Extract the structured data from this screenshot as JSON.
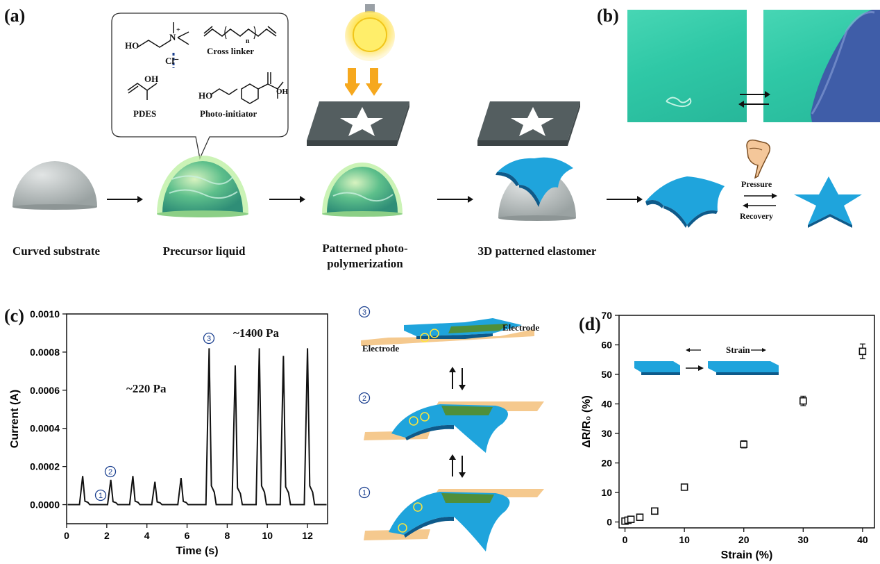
{
  "panel_a": {
    "label": "(a)",
    "captions": [
      "Curved substrate",
      "Precursor liquid",
      "Patterned photo-",
      "polymerization",
      "3D patterned elastomer"
    ],
    "chemicals": {
      "cl": "Cl⁻",
      "n": "N",
      "plus": "+",
      "ho1": "HO",
      "oh1": "OH",
      "ho2": "HO",
      "oh2": "OH",
      "pdes": "PDES",
      "cross_linker": "Cross linker",
      "n_sub": "n",
      "photo_initiator": "Photo-initiator"
    }
  },
  "panel_b": {
    "label": "(b)",
    "pressure": "Pressure",
    "recovery": "Recovery"
  },
  "panel_c": {
    "label": "(c)",
    "annot_low": "~220 Pa",
    "annot_high": "~1400 Pa",
    "markers": [
      "1",
      "2",
      "3"
    ],
    "schematic_markers": [
      "3",
      "2",
      "1"
    ],
    "electrode_left": "Electrode",
    "electrode_right": "Electrode"
  },
  "panel_d": {
    "label": "(d)",
    "strain_label": "Strain"
  },
  "chart_data": [
    {
      "type": "line",
      "xlabel": "Time (s)",
      "ylabel": "Current (A)",
      "xlim": [
        0,
        13
      ],
      "ylim": [
        -0.0001,
        0.001
      ],
      "x_ticks": [
        "0",
        "2",
        "4",
        "6",
        "8",
        "10",
        "12"
      ],
      "y_ticks": [
        "0.0000",
        "0.0002",
        "0.0004",
        "0.0006",
        "0.0008",
        "0.0010"
      ],
      "baseline": 0.0,
      "peaks": [
        {
          "t": 0.8,
          "value": 0.00015
        },
        {
          "t": 2.2,
          "value": 0.00013
        },
        {
          "t": 3.3,
          "value": 0.00015
        },
        {
          "t": 4.4,
          "value": 0.00012
        },
        {
          "t": 5.7,
          "value": 0.00014
        },
        {
          "t": 7.1,
          "value": 0.00082
        },
        {
          "t": 8.4,
          "value": 0.00073
        },
        {
          "t": 9.6,
          "value": 0.00082
        },
        {
          "t": 10.8,
          "value": 0.00078
        },
        {
          "t": 12.0,
          "value": 0.00082
        }
      ]
    },
    {
      "type": "scatter",
      "xlabel": "Strain (%)",
      "ylabel": "ΔR/R₀ (%)",
      "xlim": [
        -1,
        42
      ],
      "ylim": [
        -2,
        70
      ],
      "x_ticks": [
        "0",
        "10",
        "20",
        "30",
        "40"
      ],
      "y_ticks": [
        "0",
        "10",
        "20",
        "30",
        "40",
        "50",
        "60",
        "70"
      ],
      "points": [
        {
          "x": 0,
          "y": 0.3,
          "err": 0.3
        },
        {
          "x": 0.5,
          "y": 0.6,
          "err": 0.3
        },
        {
          "x": 1,
          "y": 0.9,
          "err": 0.4
        },
        {
          "x": 2.5,
          "y": 1.6,
          "err": 0.5
        },
        {
          "x": 5,
          "y": 3.7,
          "err": 0.6
        },
        {
          "x": 10,
          "y": 11.8,
          "err": 0.8
        },
        {
          "x": 20,
          "y": 26.3,
          "err": 1.2
        },
        {
          "x": 30,
          "y": 41.0,
          "err": 1.6
        },
        {
          "x": 40,
          "y": 57.8,
          "err": 2.5
        }
      ]
    }
  ],
  "colors": {
    "dome_gray": "#c5c9c9",
    "dome_green": "#a8e89a",
    "mask_gray": "#545e60",
    "star_blue": "#1fa4dc",
    "star_dark": "#0e5a8a",
    "electrode": "#f5c98e",
    "bulb": "#ffe65a",
    "arrow_orange": "#f6a81e",
    "marker_blue": "#1a3f8f"
  }
}
